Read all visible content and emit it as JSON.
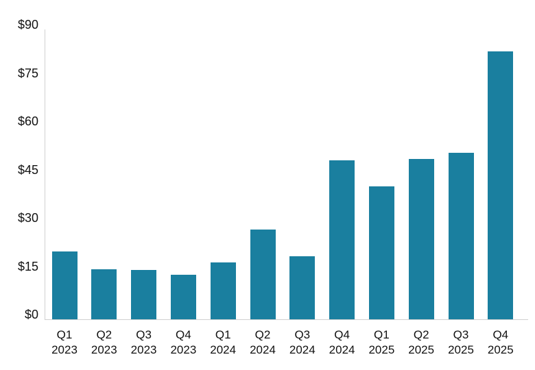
{
  "chart_data": {
    "type": "bar",
    "title": "",
    "xlabel": "",
    "ylabel": "",
    "ylim": [
      0,
      90
    ],
    "grid": false,
    "legend": null,
    "bar_color": "#1a7f9f",
    "yticks": [
      "$0",
      "$15",
      "$30",
      "$45",
      "$60",
      "$75",
      "$90"
    ],
    "ytick_values": [
      0,
      15,
      30,
      45,
      60,
      75,
      90
    ],
    "categories": [
      "Q1 2023",
      "Q2 2023",
      "Q3 2023",
      "Q4 2023",
      "Q1 2024",
      "Q2 2024",
      "Q3 2024",
      "Q4 2024",
      "Q1 2025",
      "Q2 2025",
      "Q3 2025",
      "Q4 2025"
    ],
    "category_lines": [
      [
        "Q1",
        "2023"
      ],
      [
        "Q2",
        "2023"
      ],
      [
        "Q3",
        "2023"
      ],
      [
        "Q4",
        "2023"
      ],
      [
        "Q1",
        "2024"
      ],
      [
        "Q2",
        "2024"
      ],
      [
        "Q3",
        "2024"
      ],
      [
        "Q4",
        "2024"
      ],
      [
        "Q1",
        "2025"
      ],
      [
        "Q2",
        "2025"
      ],
      [
        "Q3",
        "2025"
      ],
      [
        "Q4",
        "2025"
      ]
    ],
    "values": [
      21.0,
      15.5,
      15.3,
      13.8,
      17.6,
      27.8,
      19.5,
      49.3,
      41.2,
      49.7,
      51.6,
      83.2
    ]
  }
}
